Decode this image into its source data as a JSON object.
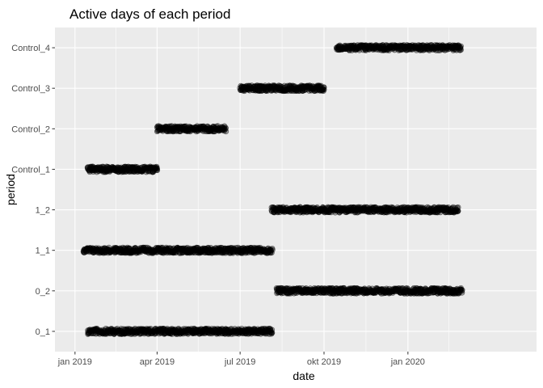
{
  "chart_data": {
    "type": "scatter",
    "title": "Active days of each period",
    "xlabel": "date",
    "ylabel": "period",
    "x_type": "date",
    "xlim": [
      "2018-12-10",
      "2020-05-21"
    ],
    "x_ticks": [
      {
        "date": "2019-01-01",
        "label": "jan 2019"
      },
      {
        "date": "2019-04-01",
        "label": "apr 2019"
      },
      {
        "date": "2019-07-01",
        "label": "jul 2019"
      },
      {
        "date": "2019-10-01",
        "label": "okt 2019"
      },
      {
        "date": "2020-01-01",
        "label": "jan 2020"
      }
    ],
    "x_minor_ticks": [
      "2019-02-15",
      "2019-05-16",
      "2019-08-16",
      "2019-11-16",
      "2020-02-15"
    ],
    "categories": [
      "0_1",
      "0_2",
      "1_1",
      "1_2",
      "Control_1",
      "Control_2",
      "Control_3",
      "Control_4"
    ],
    "series": [
      {
        "category": "0_1",
        "start": "2019-01-15",
        "end": "2019-08-05"
      },
      {
        "category": "0_2",
        "start": "2019-08-10",
        "end": "2020-02-29"
      },
      {
        "category": "1_1",
        "start": "2019-01-10",
        "end": "2019-08-05"
      },
      {
        "category": "1_2",
        "start": "2019-08-05",
        "end": "2020-02-25"
      },
      {
        "category": "Control_1",
        "start": "2019-01-15",
        "end": "2019-04-01"
      },
      {
        "category": "Control_2",
        "start": "2019-04-01",
        "end": "2019-06-15"
      },
      {
        "category": "Control_3",
        "start": "2019-07-01",
        "end": "2019-10-01"
      },
      {
        "category": "Control_4",
        "start": "2019-10-15",
        "end": "2020-02-28"
      }
    ],
    "point_color": "#000000",
    "panel_background": "#ebebeb",
    "grid_color": "#ffffff",
    "grid": true,
    "legend": "none"
  }
}
